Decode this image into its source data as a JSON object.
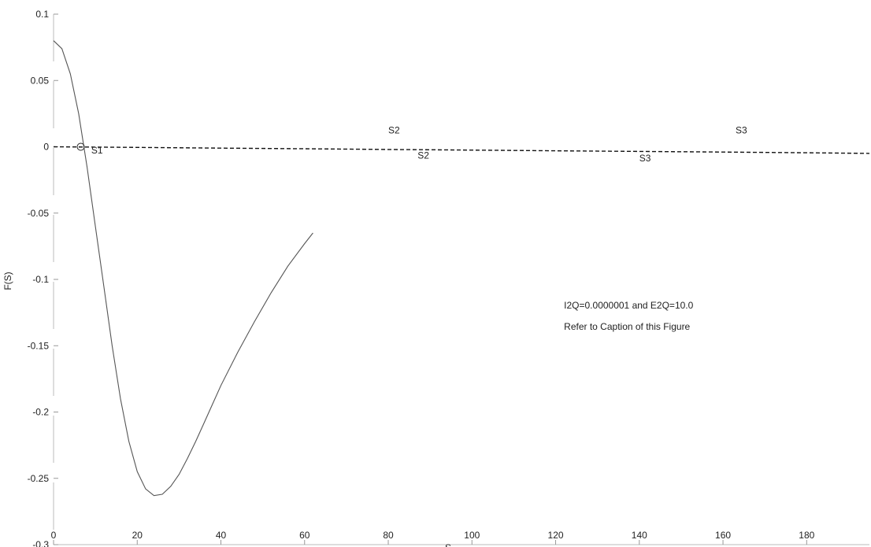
{
  "chart_data": {
    "type": "line",
    "title": "",
    "xlabel": "S",
    "ylabel": "F(S)",
    "xlim": [
      0,
      195
    ],
    "ylim": [
      -0.3,
      0.1
    ],
    "grid": false,
    "legend": "none",
    "xticks": [
      "0",
      "20",
      "40",
      "60",
      "80",
      "100",
      "120",
      "140",
      "160",
      "180"
    ],
    "yticks": [
      "0.1",
      "0.05",
      "0",
      "-0.05",
      "-0.1",
      "-0.15",
      "-0.2",
      "-0.25",
      "-0.3"
    ],
    "series": [
      {
        "style": "solid",
        "color": "#555555",
        "x": [
          0,
          2,
          4,
          6,
          8,
          10,
          12,
          14,
          16,
          18,
          20,
          22,
          24,
          26,
          28,
          30,
          32,
          34,
          36,
          38,
          40,
          44,
          48,
          52,
          56,
          60,
          62
        ],
        "y": [
          0.08,
          0.074,
          0.055,
          0.025,
          -0.015,
          -0.06,
          -0.105,
          -0.15,
          -0.19,
          -0.222,
          -0.245,
          -0.258,
          -0.263,
          -0.262,
          -0.256,
          -0.247,
          -0.235,
          -0.222,
          -0.208,
          -0.194,
          -0.18,
          -0.155,
          -0.132,
          -0.11,
          -0.09,
          -0.073,
          -0.065
        ]
      },
      {
        "style": "dashed",
        "color": "#111111",
        "x": [
          0,
          20,
          40,
          60,
          80,
          100,
          120,
          140,
          160,
          180,
          195
        ],
        "y": [
          0.0,
          -0.0005,
          -0.001,
          -0.0015,
          -0.002,
          -0.0025,
          -0.003,
          -0.0035,
          -0.004,
          -0.0045,
          -0.005
        ]
      }
    ],
    "markers": [
      {
        "x": 6.5,
        "y": 0.0,
        "shape": "circle"
      }
    ],
    "annotations": [
      {
        "text": "S1",
        "x": 9,
        "y": -0.005
      },
      {
        "text": "S2",
        "x": 80,
        "y": 0.01
      },
      {
        "text": "S2",
        "x": 87,
        "y": -0.009
      },
      {
        "text": "S3",
        "x": 140,
        "y": -0.011
      },
      {
        "text": "S3",
        "x": 163,
        "y": 0.01
      },
      {
        "text": "I2Q=0.0000001 and E2Q=10.0",
        "x": 122,
        "y": -0.122
      },
      {
        "text": "Refer to Caption of this Figure",
        "x": 122,
        "y": -0.138
      }
    ]
  }
}
